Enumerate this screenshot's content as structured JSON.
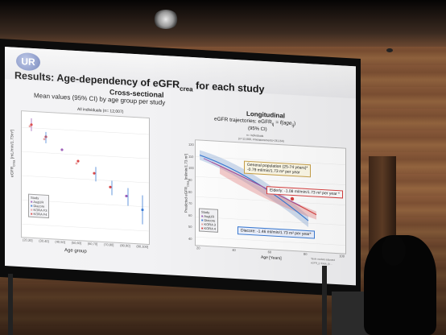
{
  "slide": {
    "logo_text": "UR",
    "title_main": "Results: Age-dependency of eGFR",
    "title_sub": "crea",
    "title_end": " for each study"
  },
  "left_panel": {
    "heading": "Cross-sectional",
    "subheading": "Mean values (95% CI) by age group per study",
    "plot_title": "All individuals (n= 12,007)",
    "ylabel": "eGFR",
    "ylabel_sub": "crea",
    "ylabel_unit": " [mL/min/1.73m²]",
    "xlabel": "Age group",
    "x_ticks": [
      "(20,30]",
      "(30,40]",
      "(40,50]",
      "(50,60]",
      "(60,70]",
      "(70,80]",
      "(80,90]",
      "(90,100]"
    ],
    "legend_title": "Study",
    "legend_items": [
      "AugUR",
      "Diacore",
      "KORA F3",
      "KORA F4"
    ],
    "legend_colors": [
      "#9b59b6",
      "#3a7bd5",
      "#e8a0a0",
      "#d94040"
    ]
  },
  "right_panel": {
    "heading": "Longitudinal",
    "subheading": "eGFR trajectories: eGFR",
    "subheading_formula": "ij",
    "subheading_tail": " = f(age",
    "subheading_tail2": "ij",
    "subheading_ci": "(95% CI)",
    "n_line1": "n= individuals",
    "n_line2": "(n=12,889, #measurements=26,164)",
    "ylabel": "Predicted eGFR",
    "ylabel_sub": "crea",
    "ylabel_unit": " [ml/min/1.73 m²]",
    "xlabel": "Age [Years]",
    "x_ticks": [
      "20",
      "40",
      "60",
      "80",
      "100"
    ],
    "y_ticks": [
      "120",
      "110",
      "100",
      "90",
      "80",
      "70",
      "60",
      "50",
      "40"
    ],
    "legend_title": "Study",
    "legend_items": [
      "AugUR",
      "Diacore",
      "KORA 3",
      "KORA 4"
    ],
    "annotation_general_1": "General population (25-74 years)*",
    "annotation_general_2": "-0.79 ml/min/1.73 m² per year",
    "annotation_elderly": "Elderly: -1.08 ml/min/1.73 m² per year *",
    "annotation_diacore": "Diacore: -1.46 ml/min/1.73 m² per year*",
    "footnote_1": "*Both models adjusted",
    "footnote_2": "eGFR_ij: f(age_ij) ..."
  }
}
